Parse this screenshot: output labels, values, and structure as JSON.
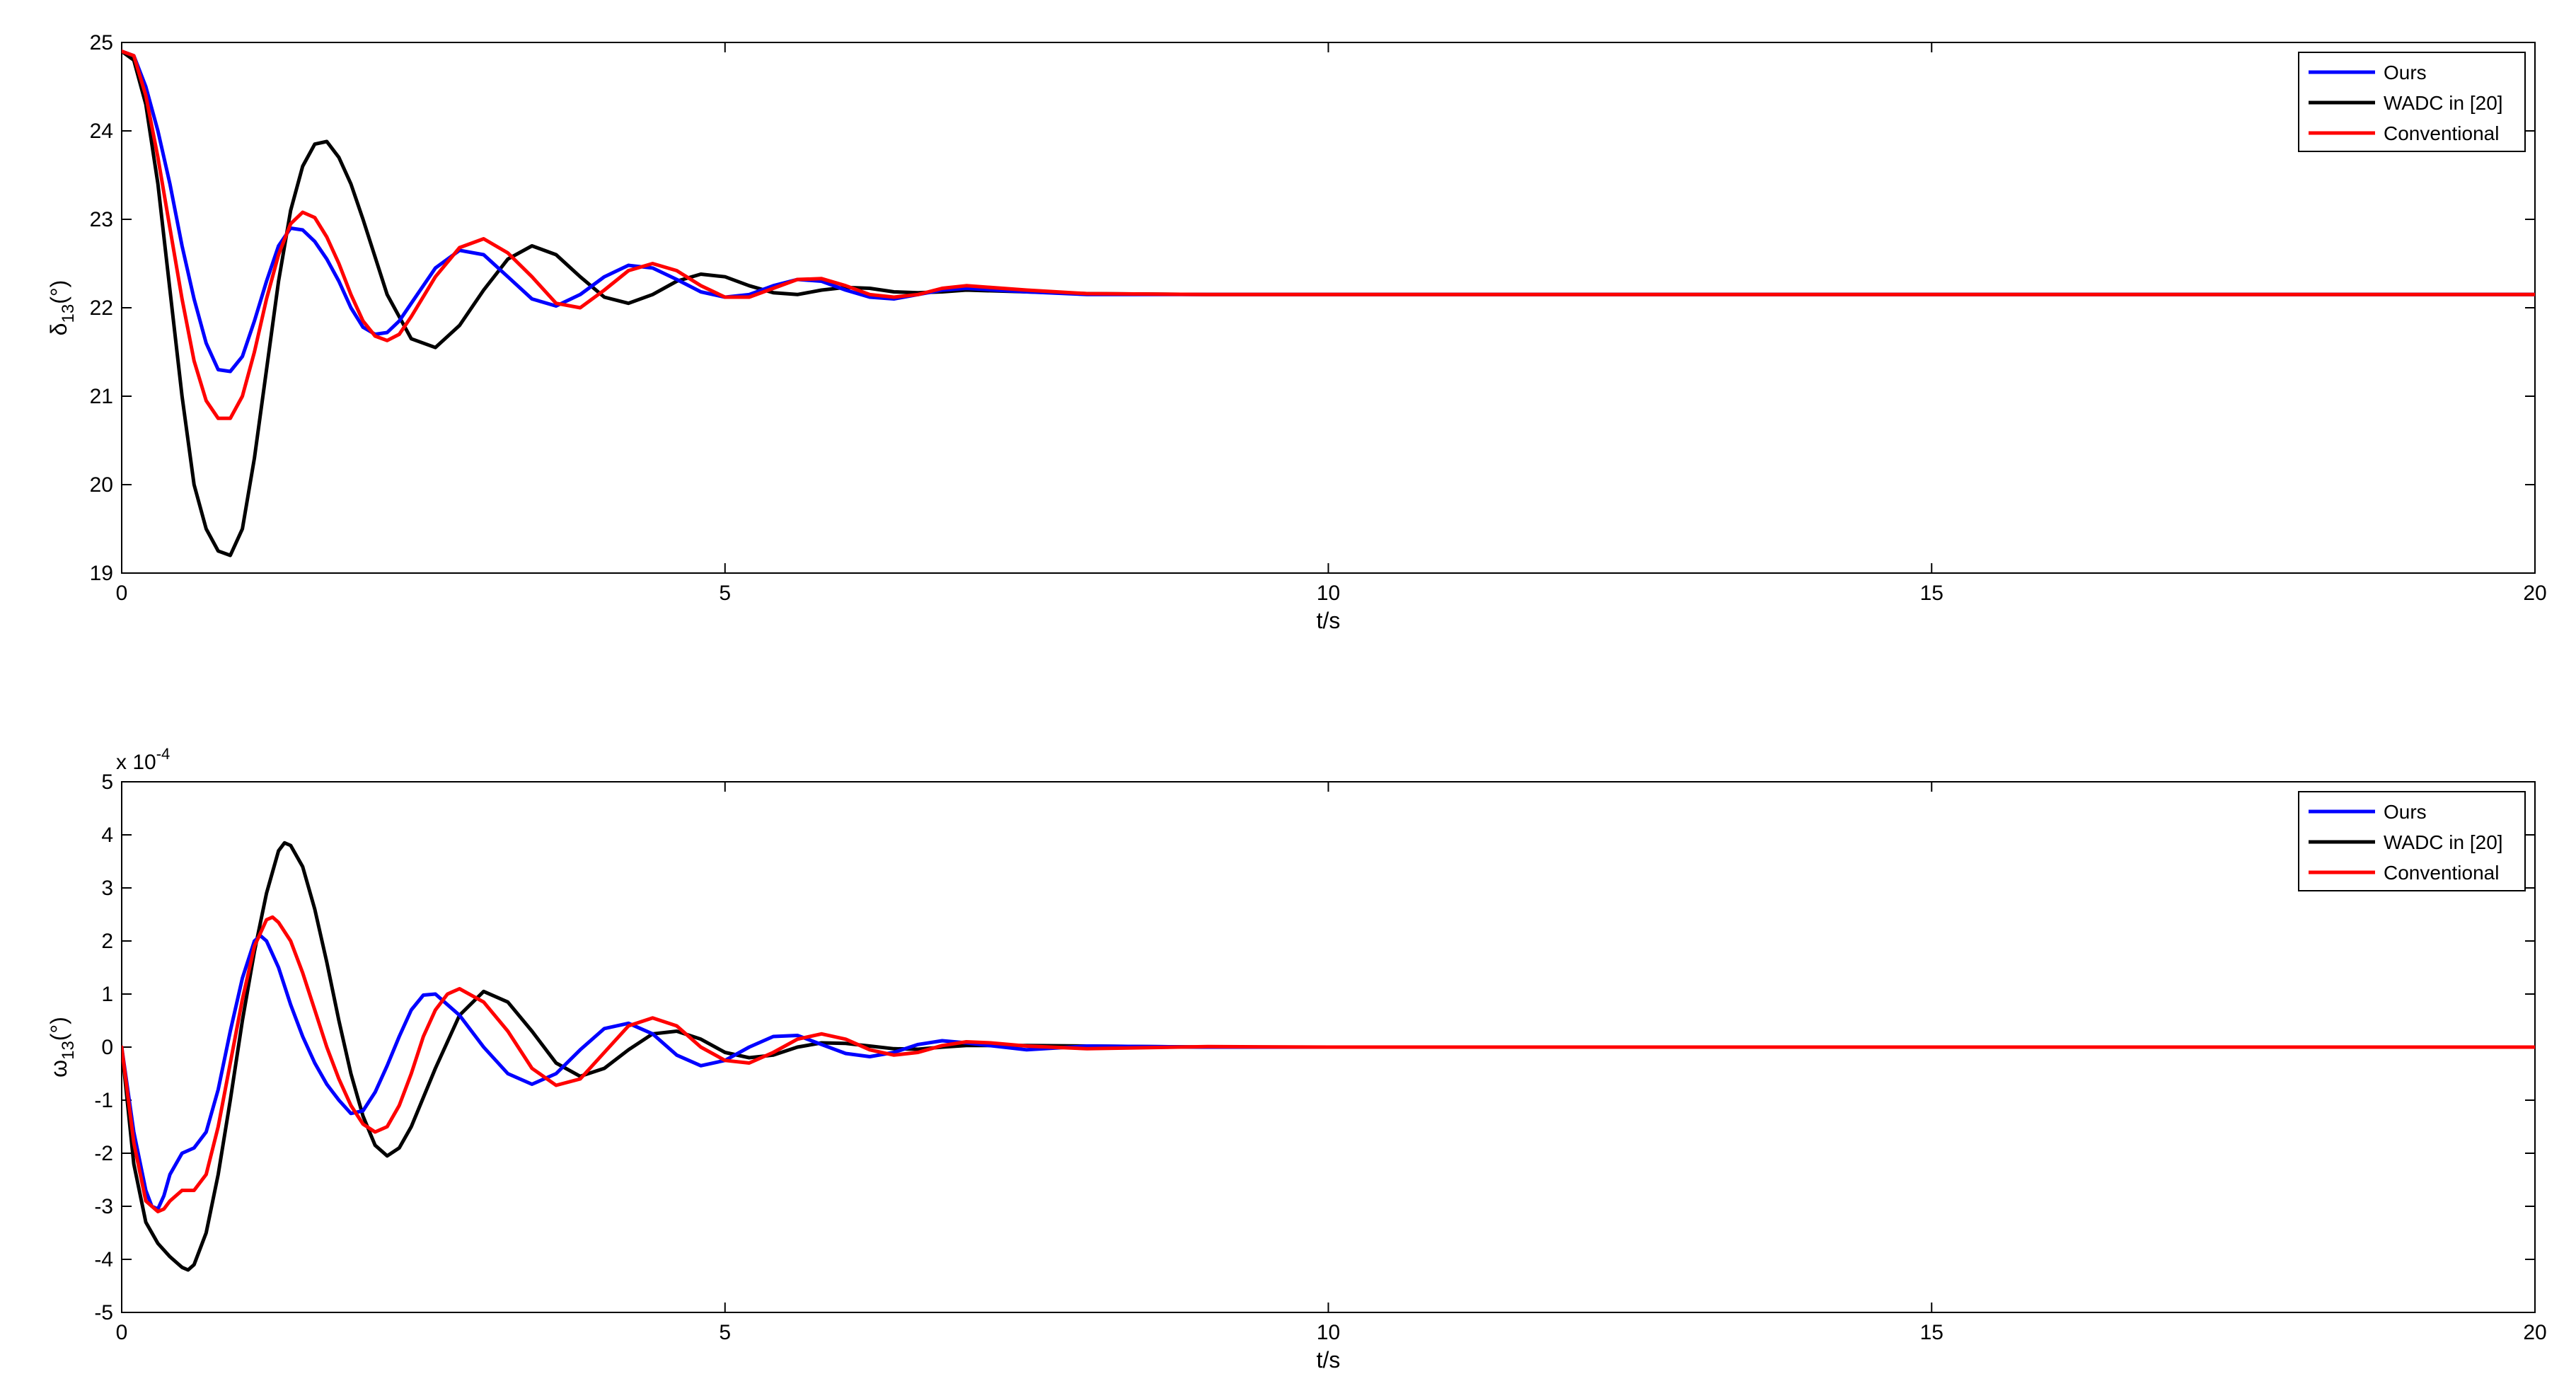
{
  "chart_data": [
    {
      "type": "line",
      "xlabel": "t/s",
      "ylabel": "δ",
      "ylabel_sub": "13",
      "ylabel_tail": "(°)",
      "xlim": [
        0,
        20
      ],
      "ylim": [
        19,
        25
      ],
      "xticks": [
        0,
        5,
        10,
        15,
        20
      ],
      "yticks": [
        19,
        20,
        21,
        22,
        23,
        24,
        25
      ],
      "multiplier": "",
      "grid": false,
      "legend": "top-right",
      "series": [
        {
          "name": "Ours",
          "color": "#0000ff",
          "x": [
            0,
            0.1,
            0.2,
            0.3,
            0.4,
            0.5,
            0.6,
            0.7,
            0.8,
            0.9,
            1.0,
            1.1,
            1.2,
            1.3,
            1.4,
            1.5,
            1.6,
            1.7,
            1.8,
            1.9,
            2.0,
            2.1,
            2.2,
            2.3,
            2.4,
            2.6,
            2.8,
            3.0,
            3.2,
            3.4,
            3.6,
            3.8,
            4.0,
            4.2,
            4.4,
            4.6,
            4.8,
            5.0,
            5.2,
            5.4,
            5.6,
            5.8,
            6.0,
            6.2,
            6.4,
            6.6,
            6.8,
            7.0,
            7.5,
            8.0,
            9.0,
            10.0,
            12.0,
            15.0,
            17.0,
            20.0
          ],
          "y": [
            24.9,
            24.85,
            24.5,
            24.0,
            23.4,
            22.7,
            22.1,
            21.6,
            21.3,
            21.28,
            21.45,
            21.85,
            22.3,
            22.7,
            22.9,
            22.88,
            22.75,
            22.55,
            22.3,
            22.0,
            21.78,
            21.7,
            21.72,
            21.85,
            22.05,
            22.45,
            22.65,
            22.6,
            22.35,
            22.1,
            22.02,
            22.15,
            22.35,
            22.48,
            22.45,
            22.32,
            22.18,
            22.12,
            22.15,
            22.25,
            22.32,
            22.3,
            22.2,
            22.12,
            22.1,
            22.15,
            22.2,
            22.22,
            22.18,
            22.15,
            22.15,
            22.15,
            22.15,
            22.15,
            22.15,
            22.15
          ]
        },
        {
          "name": "WADC in [20]",
          "color": "#000000",
          "x": [
            0,
            0.1,
            0.2,
            0.3,
            0.4,
            0.5,
            0.6,
            0.7,
            0.8,
            0.9,
            1.0,
            1.1,
            1.2,
            1.3,
            1.4,
            1.5,
            1.6,
            1.7,
            1.8,
            1.9,
            2.0,
            2.2,
            2.4,
            2.6,
            2.8,
            3.0,
            3.2,
            3.4,
            3.6,
            3.8,
            4.0,
            4.2,
            4.4,
            4.6,
            4.8,
            5.0,
            5.2,
            5.4,
            5.6,
            5.8,
            6.0,
            6.2,
            6.4,
            6.6,
            6.8,
            7.0,
            7.5,
            8.0,
            9.0,
            10.0,
            12.0,
            15.0,
            17.0,
            20.0
          ],
          "y": [
            24.9,
            24.8,
            24.3,
            23.4,
            22.2,
            21.0,
            20.0,
            19.5,
            19.25,
            19.2,
            19.5,
            20.3,
            21.3,
            22.3,
            23.1,
            23.6,
            23.85,
            23.88,
            23.7,
            23.4,
            23.0,
            22.15,
            21.65,
            21.55,
            21.8,
            22.2,
            22.55,
            22.7,
            22.6,
            22.35,
            22.12,
            22.05,
            22.15,
            22.3,
            22.38,
            22.35,
            22.25,
            22.17,
            22.15,
            22.2,
            22.23,
            22.22,
            22.18,
            22.17,
            22.18,
            22.2,
            22.18,
            22.16,
            22.15,
            22.15,
            22.15,
            22.15,
            22.15,
            22.15
          ]
        },
        {
          "name": "Conventional",
          "color": "#ff0000",
          "x": [
            0,
            0.1,
            0.2,
            0.3,
            0.4,
            0.5,
            0.6,
            0.7,
            0.8,
            0.9,
            1.0,
            1.1,
            1.2,
            1.3,
            1.4,
            1.5,
            1.6,
            1.7,
            1.8,
            1.9,
            2.0,
            2.1,
            2.2,
            2.3,
            2.4,
            2.6,
            2.8,
            3.0,
            3.2,
            3.4,
            3.6,
            3.8,
            4.0,
            4.2,
            4.4,
            4.6,
            4.8,
            5.0,
            5.2,
            5.4,
            5.6,
            5.8,
            6.0,
            6.2,
            6.4,
            6.6,
            6.8,
            7.0,
            7.5,
            8.0,
            9.0,
            10.0,
            12.0,
            15.0,
            17.0,
            20.0
          ],
          "y": [
            24.9,
            24.85,
            24.4,
            23.7,
            22.9,
            22.1,
            21.4,
            20.95,
            20.75,
            20.75,
            21.0,
            21.5,
            22.1,
            22.6,
            22.95,
            23.08,
            23.02,
            22.8,
            22.5,
            22.15,
            21.85,
            21.68,
            21.63,
            21.7,
            21.9,
            22.35,
            22.68,
            22.78,
            22.62,
            22.35,
            22.05,
            22.0,
            22.2,
            22.42,
            22.5,
            22.42,
            22.25,
            22.12,
            22.12,
            22.22,
            22.32,
            22.33,
            22.25,
            22.15,
            22.12,
            22.15,
            22.22,
            22.25,
            22.2,
            22.16,
            22.15,
            22.15,
            22.15,
            22.15,
            22.15,
            22.15
          ]
        }
      ]
    },
    {
      "type": "line",
      "xlabel": "t/s",
      "ylabel": "ω",
      "ylabel_sub": "13",
      "ylabel_tail": "(°)",
      "xlim": [
        0,
        20
      ],
      "ylim": [
        -5,
        5
      ],
      "xticks": [
        0,
        5,
        10,
        15,
        20
      ],
      "yticks": [
        -5,
        -4,
        -3,
        -2,
        -1,
        0,
        1,
        2,
        3,
        4,
        5
      ],
      "multiplier": "x 10",
      "multiplier_exp": "-4",
      "grid": false,
      "legend": "top-right",
      "series": [
        {
          "name": "Ours",
          "color": "#0000ff",
          "x": [
            0,
            0.1,
            0.2,
            0.25,
            0.3,
            0.35,
            0.4,
            0.5,
            0.6,
            0.7,
            0.8,
            0.9,
            1.0,
            1.1,
            1.15,
            1.2,
            1.3,
            1.4,
            1.5,
            1.6,
            1.7,
            1.8,
            1.9,
            2.0,
            2.1,
            2.2,
            2.3,
            2.4,
            2.5,
            2.6,
            2.8,
            3.0,
            3.2,
            3.4,
            3.6,
            3.8,
            4.0,
            4.2,
            4.4,
            4.6,
            4.8,
            5.0,
            5.2,
            5.4,
            5.6,
            5.8,
            6.0,
            6.2,
            6.4,
            6.6,
            6.8,
            7.0,
            7.5,
            8.0,
            9.0,
            10.0,
            12.0,
            15.0,
            17.0,
            20.0
          ],
          "y": [
            0,
            -1.6,
            -2.7,
            -3.0,
            -3.05,
            -2.8,
            -2.4,
            -2.0,
            -1.9,
            -1.6,
            -0.8,
            0.3,
            1.3,
            2.0,
            2.1,
            2.0,
            1.5,
            0.8,
            0.2,
            -0.3,
            -0.7,
            -1.0,
            -1.25,
            -1.2,
            -0.85,
            -0.35,
            0.2,
            0.7,
            0.98,
            1.0,
            0.6,
            0.0,
            -0.5,
            -0.7,
            -0.5,
            -0.05,
            0.35,
            0.45,
            0.25,
            -0.15,
            -0.35,
            -0.25,
            0.0,
            0.2,
            0.22,
            0.05,
            -0.12,
            -0.18,
            -0.1,
            0.05,
            0.12,
            0.08,
            -0.05,
            0.02,
            0.0,
            0.0,
            0.0,
            0.0,
            0.0,
            0.0
          ]
        },
        {
          "name": "WADC in [20]",
          "color": "#000000",
          "x": [
            0,
            0.1,
            0.2,
            0.3,
            0.4,
            0.5,
            0.55,
            0.6,
            0.7,
            0.8,
            0.9,
            1.0,
            1.1,
            1.2,
            1.3,
            1.35,
            1.4,
            1.5,
            1.6,
            1.7,
            1.8,
            1.9,
            2.0,
            2.1,
            2.2,
            2.3,
            2.4,
            2.6,
            2.8,
            3.0,
            3.2,
            3.4,
            3.6,
            3.8,
            4.0,
            4.2,
            4.4,
            4.6,
            4.8,
            5.0,
            5.2,
            5.4,
            5.6,
            5.8,
            6.0,
            6.2,
            6.4,
            6.6,
            6.8,
            7.0,
            7.5,
            8.0,
            9.0,
            10.0,
            12.0,
            15.0,
            17.0,
            20.0
          ],
          "y": [
            0,
            -2.2,
            -3.3,
            -3.7,
            -3.95,
            -4.15,
            -4.2,
            -4.1,
            -3.5,
            -2.4,
            -1.0,
            0.5,
            1.8,
            2.9,
            3.7,
            3.85,
            3.8,
            3.4,
            2.6,
            1.6,
            0.5,
            -0.5,
            -1.3,
            -1.85,
            -2.05,
            -1.9,
            -1.5,
            -0.4,
            0.6,
            1.05,
            0.85,
            0.3,
            -0.3,
            -0.55,
            -0.4,
            -0.05,
            0.25,
            0.3,
            0.15,
            -0.1,
            -0.2,
            -0.15,
            0.0,
            0.08,
            0.07,
            0.02,
            -0.03,
            -0.04,
            0.0,
            0.03,
            0.03,
            0.02,
            0.0,
            0.0,
            0.0,
            0.0,
            0.0,
            0.0
          ]
        },
        {
          "name": "Conventional",
          "color": "#ff0000",
          "x": [
            0,
            0.1,
            0.2,
            0.3,
            0.35,
            0.4,
            0.5,
            0.6,
            0.7,
            0.8,
            0.9,
            1.0,
            1.1,
            1.2,
            1.25,
            1.3,
            1.4,
            1.5,
            1.6,
            1.7,
            1.8,
            1.9,
            2.0,
            2.1,
            2.2,
            2.3,
            2.4,
            2.5,
            2.6,
            2.7,
            2.8,
            3.0,
            3.2,
            3.4,
            3.6,
            3.8,
            4.0,
            4.2,
            4.4,
            4.6,
            4.8,
            5.0,
            5.2,
            5.4,
            5.6,
            5.8,
            6.0,
            6.2,
            6.4,
            6.6,
            6.8,
            7.0,
            7.2,
            7.5,
            8.0,
            9.0,
            10.0,
            12.0,
            15.0,
            17.0,
            20.0
          ],
          "y": [
            0,
            -1.8,
            -2.9,
            -3.1,
            -3.05,
            -2.9,
            -2.7,
            -2.7,
            -2.4,
            -1.5,
            -0.3,
            0.9,
            1.9,
            2.4,
            2.45,
            2.35,
            2.0,
            1.4,
            0.7,
            0.0,
            -0.6,
            -1.1,
            -1.45,
            -1.6,
            -1.5,
            -1.1,
            -0.5,
            0.2,
            0.7,
            1.0,
            1.1,
            0.85,
            0.3,
            -0.4,
            -0.72,
            -0.6,
            -0.1,
            0.4,
            0.55,
            0.4,
            0.0,
            -0.25,
            -0.3,
            -0.1,
            0.15,
            0.25,
            0.15,
            -0.05,
            -0.15,
            -0.1,
            0.03,
            0.1,
            0.08,
            0.02,
            -0.03,
            0.01,
            0.0,
            0.0,
            0.0,
            0.0,
            0.0
          ]
        }
      ]
    }
  ]
}
